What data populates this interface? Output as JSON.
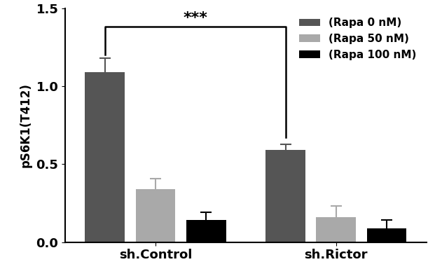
{
  "chart_data": {
    "type": "bar",
    "y_label": "pS6K1(T412)",
    "categories": [
      "sh.Control",
      "sh.Rictor"
    ],
    "series": [
      {
        "name": "(Rapa 0 nM)",
        "color": "#555555",
        "values": [
          1.09,
          0.59
        ],
        "errors": [
          0.09,
          0.035
        ]
      },
      {
        "name": "(Rapa 50 nM)",
        "color": "#a9a9a9",
        "values": [
          0.34,
          0.16
        ],
        "errors": [
          0.065,
          0.07
        ]
      },
      {
        "name": "(Rapa 100 nM)",
        "color": "#000000",
        "values": [
          0.14,
          0.09
        ],
        "errors": [
          0.05,
          0.05
        ]
      }
    ],
    "ylim": [
      0,
      1.5
    ],
    "yticks": [
      {
        "value": 0,
        "label": "0.0"
      },
      {
        "value": 0.5,
        "label": "0.5"
      },
      {
        "value": 1.0,
        "label": "1.0"
      },
      {
        "value": 1.5,
        "label": "1.5"
      }
    ],
    "legend": "upper right",
    "annotations": [
      {
        "text": "***"
      }
    ]
  }
}
